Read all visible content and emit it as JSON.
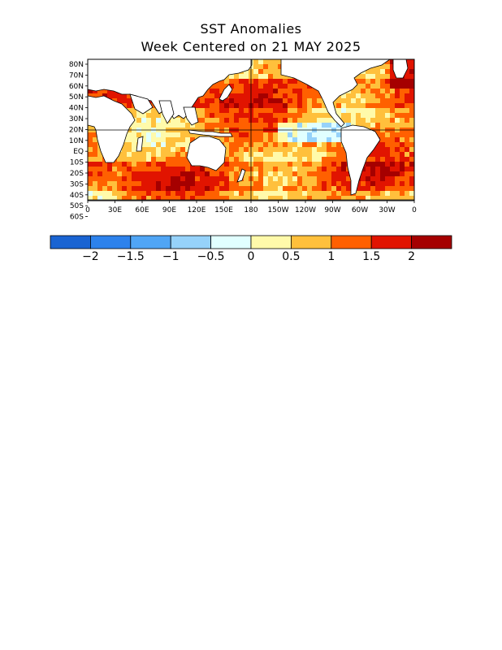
{
  "title": "SST Anomalies",
  "subtitle": "Week Centered on 21 MAY 2025",
  "map": {
    "lat_ticks": [
      "80N",
      "70N",
      "60N",
      "50N",
      "40N",
      "30N",
      "20N",
      "10N",
      "EQ",
      "10S",
      "20S",
      "30S",
      "40S",
      "50S",
      "60S"
    ],
    "lon_ticks": [
      "0",
      "30E",
      "60E",
      "90E",
      "120E",
      "150E",
      "180",
      "150W",
      "120W",
      "90W",
      "60W",
      "30W",
      "0"
    ]
  },
  "colorbar": {
    "colors": [
      "#1a64d2",
      "#2d82ec",
      "#50a5f5",
      "#96d2fa",
      "#e1ffff",
      "#fffaaa",
      "#ffc03c",
      "#ff6000",
      "#e11400",
      "#a50000"
    ],
    "labels": [
      "−2",
      "−1.5",
      "−1",
      "−0.5",
      "0",
      "0.5",
      "1",
      "1.5",
      "2"
    ]
  },
  "palette": {
    "land": "#ffffff",
    "coast": "#000000",
    "frame": "#000000"
  }
}
